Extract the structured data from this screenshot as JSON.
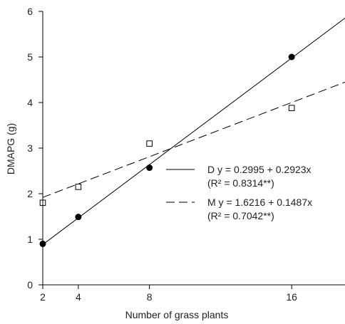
{
  "chart_data": {
    "type": "scatter",
    "xlabel": "Number of grass plants",
    "ylabel": "DMAPG (g)",
    "xlim": [
      2,
      19
    ],
    "ylim": [
      0,
      6
    ],
    "x_ticks": [
      2,
      4,
      8,
      16
    ],
    "y_ticks": [
      0,
      1,
      2,
      3,
      4,
      5,
      6
    ],
    "grid": false,
    "legend_position": "right",
    "series": [
      {
        "name": "D",
        "marker": "filled-circle",
        "line_style": "solid",
        "color": "#000000",
        "points": [
          {
            "x": 2,
            "y": 0.9
          },
          {
            "x": 4,
            "y": 1.49
          },
          {
            "x": 8,
            "y": 2.57
          },
          {
            "x": 16,
            "y": 5.0
          }
        ],
        "fit": {
          "intercept": 0.2995,
          "slope": 0.2923
        },
        "equation": "y = 0.2995 + 0.2923x",
        "r2": "(R² = 0.8314**)"
      },
      {
        "name": "M",
        "marker": "open-square",
        "line_style": "dashed",
        "color": "#000000",
        "points": [
          {
            "x": 2,
            "y": 1.8
          },
          {
            "x": 4,
            "y": 2.15
          },
          {
            "x": 8,
            "y": 3.1
          },
          {
            "x": 16,
            "y": 3.88
          }
        ],
        "fit": {
          "intercept": 1.6216,
          "slope": 0.1487
        },
        "equation": "y = 1.6216 + 0.1487x",
        "r2": "(R² = 0.7042**)"
      }
    ]
  }
}
